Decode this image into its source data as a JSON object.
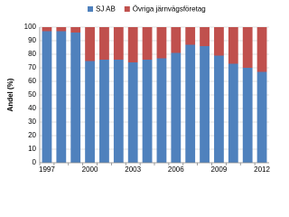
{
  "chart_data": {
    "type": "stacked_bar",
    "y_label": "Andel (%)",
    "categories": [
      "1997",
      null,
      null,
      "2000",
      null,
      null,
      "2003",
      null,
      null,
      "2006",
      null,
      null,
      "2009",
      null,
      null,
      "2012"
    ],
    "series": [
      {
        "name": "SJ AB",
        "color": "#4f81bd",
        "values": [
          97,
          97,
          96,
          75,
          76,
          76,
          74,
          76,
          77,
          81,
          87,
          86,
          79,
          73,
          70,
          67
        ]
      },
      {
        "name": "Övriga järnvägsföretag",
        "color": "#c0504d",
        "values": [
          3,
          3,
          4,
          25,
          24,
          24,
          26,
          24,
          23,
          19,
          13,
          14,
          21,
          27,
          30,
          33
        ]
      }
    ],
    "ylim": [
      0,
      100
    ],
    "yticks": [
      0,
      10,
      20,
      30,
      40,
      50,
      60,
      70,
      80,
      90,
      100
    ],
    "grid": true
  }
}
